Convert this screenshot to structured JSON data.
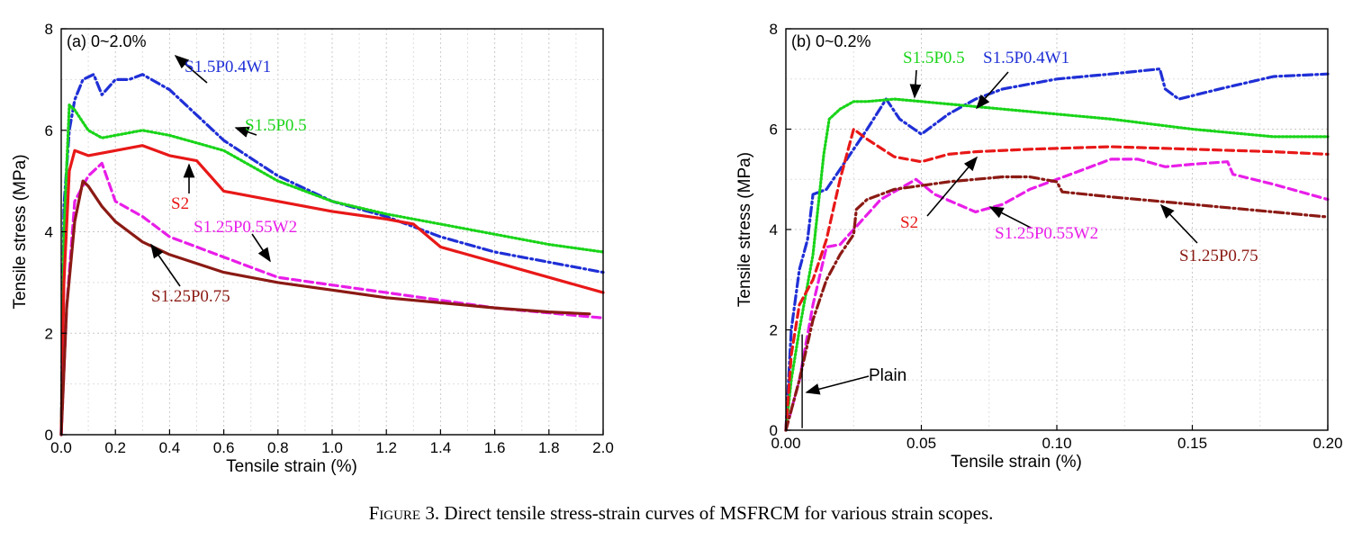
{
  "caption": {
    "figure_word": "Figure 3.",
    "text": "Direct tensile stress-strain curves of MSFRCM for various strain scopes."
  },
  "chart_data": [
    {
      "type": "line",
      "panel_label": "(a) 0~2.0%",
      "xlabel": "Tensile strain (%)",
      "ylabel": "Tensile stress (MPa)",
      "xlim": [
        0,
        2.0
      ],
      "ylim": [
        0,
        8
      ],
      "x_ticks": [
        "0.0",
        "0.2",
        "0.4",
        "0.6",
        "0.8",
        "1.0",
        "1.2",
        "1.4",
        "1.6",
        "1.8",
        "2.0"
      ],
      "y_ticks": [
        "0",
        "2",
        "4",
        "6",
        "8"
      ],
      "grid": true,
      "series": [
        {
          "name": "S1.5P0.4W1",
          "color": "#1f2fd6",
          "style": "dash-dot",
          "points": [
            [
              0,
              0
            ],
            [
              0.01,
              4.5
            ],
            [
              0.03,
              6.0
            ],
            [
              0.05,
              6.6
            ],
            [
              0.08,
              7.0
            ],
            [
              0.12,
              7.1
            ],
            [
              0.15,
              6.7
            ],
            [
              0.2,
              7.0
            ],
            [
              0.25,
              7.0
            ],
            [
              0.3,
              7.1
            ],
            [
              0.4,
              6.8
            ],
            [
              0.5,
              6.3
            ],
            [
              0.6,
              5.8
            ],
            [
              0.8,
              5.1
            ],
            [
              1.0,
              4.6
            ],
            [
              1.2,
              4.3
            ],
            [
              1.4,
              3.9
            ],
            [
              1.6,
              3.6
            ],
            [
              1.8,
              3.4
            ],
            [
              2.0,
              3.2
            ]
          ]
        },
        {
          "name": "S1.5P0.5",
          "color": "#19d419",
          "style": "dotted",
          "points": [
            [
              0,
              0
            ],
            [
              0.01,
              4.0
            ],
            [
              0.03,
              6.5
            ],
            [
              0.05,
              6.4
            ],
            [
              0.1,
              6.0
            ],
            [
              0.15,
              5.85
            ],
            [
              0.3,
              6.0
            ],
            [
              0.4,
              5.9
            ],
            [
              0.5,
              5.75
            ],
            [
              0.6,
              5.6
            ],
            [
              0.8,
              5.0
            ],
            [
              1.0,
              4.6
            ],
            [
              1.2,
              4.35
            ],
            [
              1.4,
              4.15
            ],
            [
              1.6,
              3.95
            ],
            [
              1.8,
              3.75
            ],
            [
              2.0,
              3.6
            ]
          ]
        },
        {
          "name": "S2",
          "color": "#e81818",
          "style": "solid",
          "points": [
            [
              0,
              0
            ],
            [
              0.01,
              3.0
            ],
            [
              0.03,
              5.2
            ],
            [
              0.05,
              5.6
            ],
            [
              0.1,
              5.5
            ],
            [
              0.2,
              5.6
            ],
            [
              0.3,
              5.7
            ],
            [
              0.4,
              5.5
            ],
            [
              0.5,
              5.4
            ],
            [
              0.55,
              5.1
            ],
            [
              0.6,
              4.8
            ],
            [
              0.8,
              4.6
            ],
            [
              1.0,
              4.4
            ],
            [
              1.2,
              4.25
            ],
            [
              1.3,
              4.15
            ],
            [
              1.4,
              3.7
            ],
            [
              1.6,
              3.4
            ],
            [
              1.8,
              3.1
            ],
            [
              2.0,
              2.8
            ]
          ]
        },
        {
          "name": "S1.25P0.55W2",
          "color": "#e81ee8",
          "style": "dashed",
          "points": [
            [
              0,
              0
            ],
            [
              0.02,
              2.5
            ],
            [
              0.05,
              4.6
            ],
            [
              0.1,
              5.1
            ],
            [
              0.15,
              5.35
            ],
            [
              0.2,
              4.6
            ],
            [
              0.3,
              4.3
            ],
            [
              0.4,
              3.9
            ],
            [
              0.6,
              3.5
            ],
            [
              0.8,
              3.1
            ],
            [
              1.0,
              2.95
            ],
            [
              1.2,
              2.8
            ],
            [
              1.4,
              2.65
            ],
            [
              1.6,
              2.5
            ],
            [
              1.8,
              2.4
            ],
            [
              2.0,
              2.3
            ]
          ]
        },
        {
          "name": "S1.25P0.75",
          "color": "#8b1a14",
          "style": "solid",
          "points": [
            [
              0,
              0
            ],
            [
              0.02,
              2.5
            ],
            [
              0.05,
              4.2
            ],
            [
              0.08,
              5.0
            ],
            [
              0.1,
              4.9
            ],
            [
              0.15,
              4.5
            ],
            [
              0.2,
              4.2
            ],
            [
              0.3,
              3.8
            ],
            [
              0.4,
              3.55
            ],
            [
              0.6,
              3.2
            ],
            [
              0.8,
              3.0
            ],
            [
              1.0,
              2.85
            ],
            [
              1.2,
              2.7
            ],
            [
              1.4,
              2.6
            ],
            [
              1.6,
              2.5
            ],
            [
              1.8,
              2.42
            ],
            [
              1.95,
              2.38
            ]
          ]
        }
      ],
      "annotations": [
        {
          "text": "S1.5P0.4W1",
          "color": "#1f2fd6"
        },
        {
          "text": "S1.5P0.5",
          "color": "#19d419"
        },
        {
          "text": "S2",
          "color": "#e81818"
        },
        {
          "text": "S1.25P0.55W2",
          "color": "#e81ee8"
        },
        {
          "text": "S1.25P0.75",
          "color": "#8b1a14"
        }
      ]
    },
    {
      "type": "line",
      "panel_label": "(b) 0~0.2%",
      "xlabel": "Tensile strain (%)",
      "ylabel": "Tensile stress (MPa)",
      "xlim": [
        0,
        0.2
      ],
      "ylim": [
        0,
        8
      ],
      "x_ticks": [
        "0.00",
        "0.05",
        "0.10",
        "0.15",
        "0.20"
      ],
      "y_ticks": [
        "0",
        "2",
        "4",
        "6",
        "8"
      ],
      "grid": true,
      "series": [
        {
          "name": "S1.5P0.4W1",
          "color": "#1f2fd6",
          "style": "dash-dot",
          "points": [
            [
              0,
              0
            ],
            [
              0.002,
              2.0
            ],
            [
              0.005,
              3.2
            ],
            [
              0.008,
              3.8
            ],
            [
              0.01,
              4.7
            ],
            [
              0.015,
              4.8
            ],
            [
              0.02,
              5.2
            ],
            [
              0.03,
              6.0
            ],
            [
              0.037,
              6.6
            ],
            [
              0.042,
              6.2
            ],
            [
              0.05,
              5.9
            ],
            [
              0.06,
              6.3
            ],
            [
              0.07,
              6.6
            ],
            [
              0.08,
              6.8
            ],
            [
              0.1,
              7.0
            ],
            [
              0.12,
              7.1
            ],
            [
              0.138,
              7.2
            ],
            [
              0.14,
              6.8
            ],
            [
              0.145,
              6.6
            ],
            [
              0.16,
              6.8
            ],
            [
              0.18,
              7.05
            ],
            [
              0.2,
              7.1
            ]
          ]
        },
        {
          "name": "S1.5P0.5",
          "color": "#19d419",
          "style": "dotted",
          "points": [
            [
              0,
              0
            ],
            [
              0.002,
              1.0
            ],
            [
              0.005,
              2.0
            ],
            [
              0.01,
              3.5
            ],
            [
              0.014,
              5.5
            ],
            [
              0.016,
              6.2
            ],
            [
              0.02,
              6.4
            ],
            [
              0.025,
              6.55
            ],
            [
              0.03,
              6.55
            ],
            [
              0.04,
              6.6
            ],
            [
              0.05,
              6.55
            ],
            [
              0.08,
              6.4
            ],
            [
              0.1,
              6.3
            ],
            [
              0.12,
              6.2
            ],
            [
              0.15,
              6.0
            ],
            [
              0.18,
              5.85
            ],
            [
              0.2,
              5.85
            ]
          ]
        },
        {
          "name": "S2",
          "color": "#e81818",
          "style": "dashed",
          "points": [
            [
              0,
              0
            ],
            [
              0.002,
              1.5
            ],
            [
              0.005,
              2.5
            ],
            [
              0.01,
              3.0
            ],
            [
              0.015,
              3.8
            ],
            [
              0.02,
              5.0
            ],
            [
              0.025,
              6.0
            ],
            [
              0.03,
              5.8
            ],
            [
              0.04,
              5.45
            ],
            [
              0.05,
              5.35
            ],
            [
              0.06,
              5.5
            ],
            [
              0.07,
              5.55
            ],
            [
              0.09,
              5.6
            ],
            [
              0.12,
              5.65
            ],
            [
              0.15,
              5.6
            ],
            [
              0.18,
              5.55
            ],
            [
              0.2,
              5.5
            ]
          ]
        },
        {
          "name": "S1.25P0.55W2",
          "color": "#e81ee8",
          "style": "dashed",
          "points": [
            [
              0,
              0
            ],
            [
              0.005,
              1.0
            ],
            [
              0.01,
              2.5
            ],
            [
              0.015,
              3.65
            ],
            [
              0.02,
              3.7
            ],
            [
              0.025,
              4.0
            ],
            [
              0.035,
              4.6
            ],
            [
              0.048,
              5.0
            ],
            [
              0.055,
              4.7
            ],
            [
              0.07,
              4.35
            ],
            [
              0.08,
              4.5
            ],
            [
              0.09,
              4.8
            ],
            [
              0.1,
              5.0
            ],
            [
              0.11,
              5.2
            ],
            [
              0.12,
              5.4
            ],
            [
              0.13,
              5.4
            ],
            [
              0.14,
              5.25
            ],
            [
              0.15,
              5.3
            ],
            [
              0.163,
              5.35
            ],
            [
              0.165,
              5.1
            ],
            [
              0.18,
              4.9
            ],
            [
              0.2,
              4.6
            ]
          ]
        },
        {
          "name": "S1.25P0.75",
          "color": "#8b1a14",
          "style": "dash-dot",
          "points": [
            [
              0,
              0
            ],
            [
              0.005,
              1.0
            ],
            [
              0.01,
              2.2
            ],
            [
              0.015,
              3.0
            ],
            [
              0.02,
              3.5
            ],
            [
              0.025,
              3.9
            ],
            [
              0.026,
              4.4
            ],
            [
              0.03,
              4.6
            ],
            [
              0.04,
              4.8
            ],
            [
              0.06,
              4.95
            ],
            [
              0.08,
              5.05
            ],
            [
              0.09,
              5.05
            ],
            [
              0.1,
              4.95
            ],
            [
              0.102,
              4.75
            ],
            [
              0.12,
              4.65
            ],
            [
              0.14,
              4.55
            ],
            [
              0.16,
              4.45
            ],
            [
              0.18,
              4.35
            ],
            [
              0.2,
              4.25
            ]
          ]
        },
        {
          "name": "Plain",
          "color": "#000000",
          "style": "solid",
          "points": [
            [
              0.006,
              0.05
            ],
            [
              0.006,
              1.9
            ]
          ]
        }
      ],
      "annotations": [
        {
          "text": "S1.5P0.5",
          "color": "#19d419"
        },
        {
          "text": "S1.5P0.4W1",
          "color": "#1f2fd6"
        },
        {
          "text": "S2",
          "color": "#e81818"
        },
        {
          "text": "S1.25P0.55W2",
          "color": "#e81ee8"
        },
        {
          "text": "S1.25P0.75",
          "color": "#8b1a14"
        },
        {
          "text": "Plain",
          "color": "#000000"
        }
      ]
    }
  ]
}
